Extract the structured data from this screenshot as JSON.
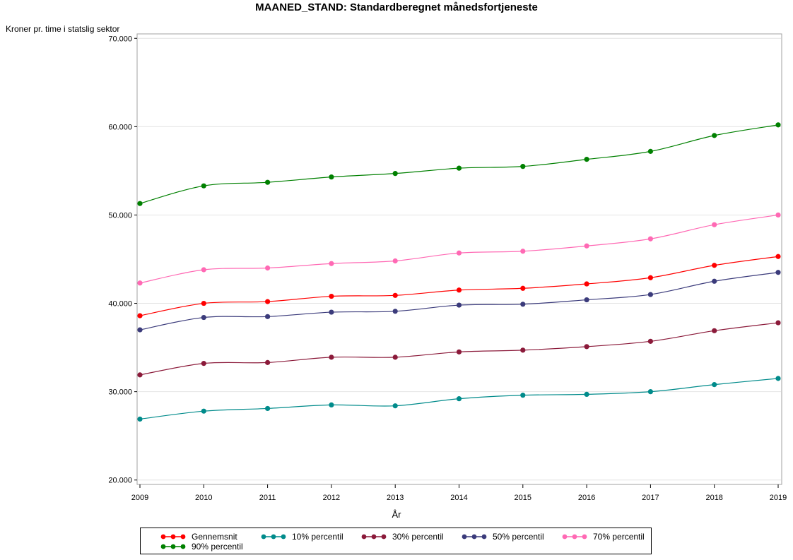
{
  "chart_data": {
    "type": "line",
    "title": "MAANED_STAND: Standardberegnet månedsfortjeneste",
    "ylabel": "Kroner pr. time i statslig sektor",
    "xlabel": "År",
    "x": [
      2009,
      2010,
      2011,
      2012,
      2013,
      2014,
      2015,
      2016,
      2017,
      2018,
      2019
    ],
    "x_tick_labels": [
      "2009",
      "2010",
      "2011",
      "2012",
      "2013",
      "2014",
      "2015",
      "2016",
      "2017",
      "2018",
      "2019"
    ],
    "xlim": [
      2009,
      2019
    ],
    "ylim": [
      19500,
      70500
    ],
    "y_ticks": [
      20000,
      30000,
      40000,
      50000,
      60000,
      70000
    ],
    "y_tick_labels": [
      "20.000",
      "30.000",
      "40.000",
      "50.000",
      "60.000",
      "70.000"
    ],
    "grid": "horizontal",
    "legend_position": "bottom",
    "series": [
      {
        "name": "Gennemsnit",
        "color": "#ff0000",
        "values": [
          38600,
          40000,
          40200,
          40800,
          40900,
          41500,
          41700,
          42200,
          42900,
          44300,
          45300
        ]
      },
      {
        "name": "10% percentil",
        "color": "#008b8b",
        "values": [
          26900,
          27800,
          28100,
          28500,
          28400,
          29200,
          29600,
          29700,
          30000,
          30800,
          31500
        ]
      },
      {
        "name": "30% percentil",
        "color": "#8b1a3a",
        "values": [
          31900,
          33200,
          33300,
          33900,
          33900,
          34500,
          34700,
          35100,
          35700,
          36900,
          37800
        ]
      },
      {
        "name": "50% percentil",
        "color": "#3b3b7b",
        "values": [
          37000,
          38400,
          38500,
          39000,
          39100,
          39800,
          39900,
          40400,
          41000,
          42500,
          43500
        ]
      },
      {
        "name": "70% percentil",
        "color": "#ff69b4",
        "values": [
          42300,
          43800,
          44000,
          44500,
          44800,
          45700,
          45900,
          46500,
          47300,
          48900,
          50000
        ]
      },
      {
        "name": "90% percentil",
        "color": "#008000",
        "values": [
          51300,
          53300,
          53700,
          54300,
          54700,
          55300,
          55500,
          56300,
          57200,
          59000,
          60200
        ]
      }
    ]
  }
}
